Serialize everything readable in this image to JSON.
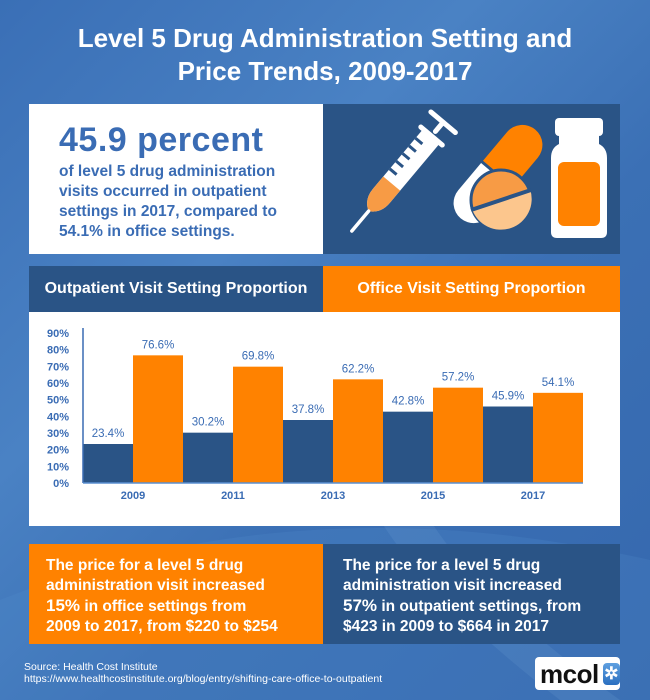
{
  "title": {
    "line1": "Level 5 Drug Administration Setting and",
    "line2": "Price Trends, 2009-2017"
  },
  "highlight": {
    "big": "45.9 percent",
    "lines": [
      "of level 5 drug administration",
      "visits occurred in outpatient",
      "settings in 2017, compared to",
      "54.1% in office settings."
    ]
  },
  "icons": [
    "syringe-icon",
    "capsule-icon",
    "tablet-icon",
    "pill-bottle-icon"
  ],
  "legend": {
    "outpatient": "Outpatient Visit Setting Proportion",
    "office": "Office Visit Setting Proportion"
  },
  "colors": {
    "outpatient": "#2a5486",
    "office": "#ff8200",
    "axis_text": "#3a6cb4",
    "background": "#3a6fb6"
  },
  "chart_data": {
    "type": "bar",
    "title": "",
    "xlabel": "",
    "ylabel": "",
    "categories": [
      "2009",
      "2011",
      "2013",
      "2015",
      "2017"
    ],
    "series": [
      {
        "name": "Outpatient Visit Setting Proportion",
        "values": [
          23.4,
          30.2,
          37.8,
          42.8,
          45.9
        ],
        "labels": [
          "23.4%",
          "30.2%",
          "37.8%",
          "42.8%",
          "45.9%"
        ]
      },
      {
        "name": "Office Visit Setting Proportion",
        "values": [
          76.6,
          69.8,
          62.2,
          57.2,
          54.1
        ],
        "labels": [
          "76.6%",
          "69.8%",
          "62.2%",
          "57.2%",
          "54.1%"
        ]
      }
    ],
    "ylim": [
      0,
      90
    ],
    "yticks": [
      "0%",
      "10%",
      "20%",
      "30%",
      "40%",
      "50%",
      "60%",
      "70%",
      "80%",
      "90%"
    ],
    "grid": false,
    "legend": "top"
  },
  "price_office": {
    "line1": "The price for a level 5 drug",
    "line2": "administration visit increased",
    "pct": "15%",
    "line3_rest": " in office settings from",
    "line4": "2009 to 2017, from $220 to $254"
  },
  "price_outpatient": {
    "line1": "The price for a level 5 drug",
    "line2": "administration visit increased",
    "pct": "57%",
    "line3_rest": " in outpatient settings, from",
    "line4": "$423 in 2009 to $664 in 2017"
  },
  "source": {
    "label": "Source: Health Cost Institute",
    "url": "https://www.healthcostinstitute.org/blog/entry/shifting-care-office-to-outpatient"
  },
  "logo": {
    "text": "mcol",
    "mark": "✲"
  }
}
